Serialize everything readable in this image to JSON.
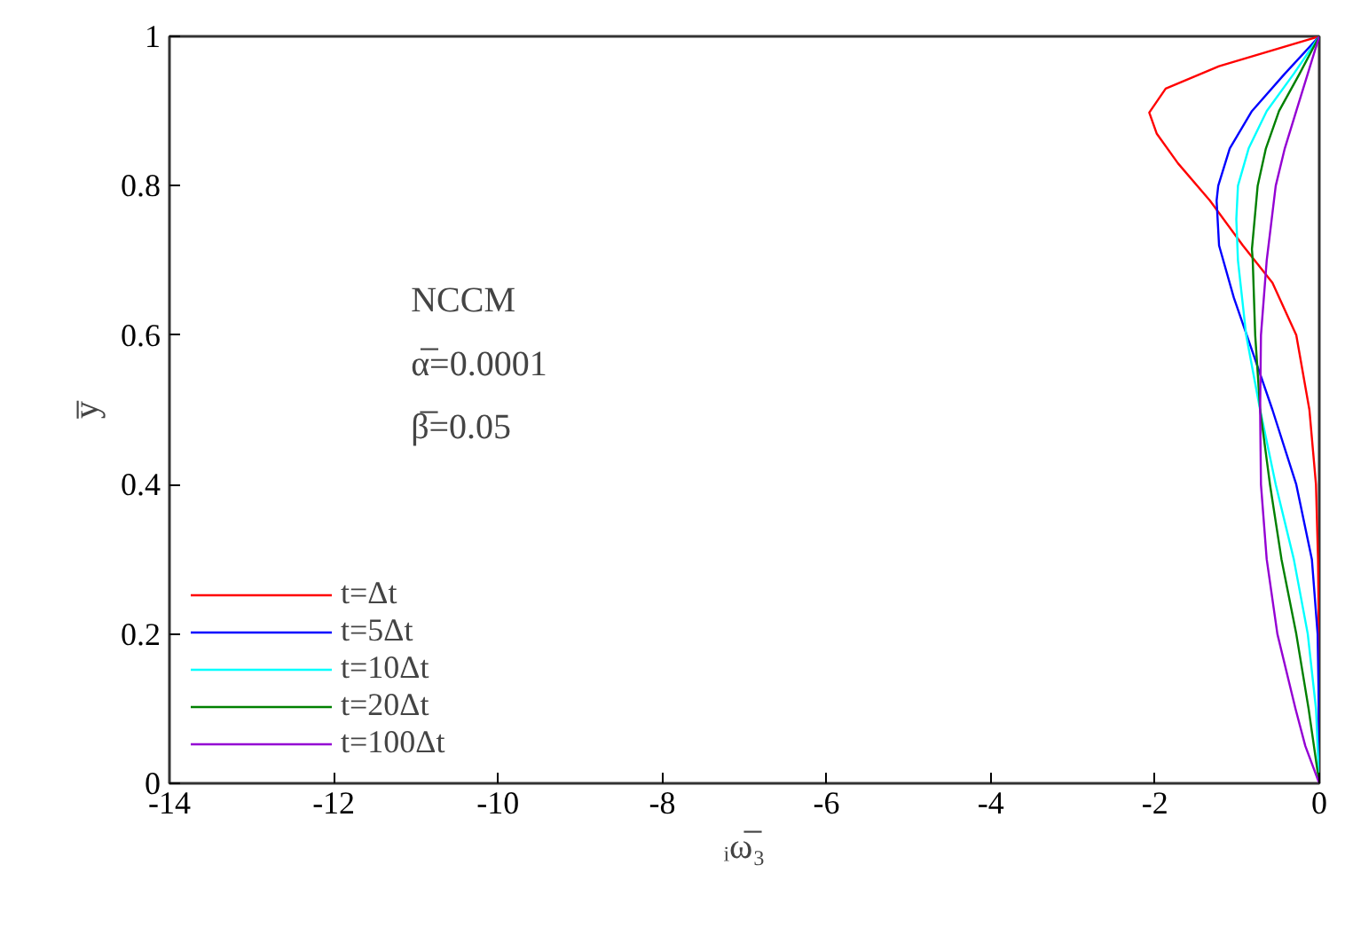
{
  "chart_data": {
    "type": "line",
    "xlabel": "ᵢω̅₃",
    "ylabel": "y̅",
    "annotations": [
      "NCCM",
      "α̅=0.0001",
      "β̅=0.05"
    ],
    "xlim": [
      -14,
      0
    ],
    "ylim": [
      0,
      1
    ],
    "xticks": [
      -14,
      -12,
      -10,
      -8,
      -6,
      -4,
      -2,
      0
    ],
    "yticks": [
      0,
      {
        "value": 0.2,
        "label": "0.2"
      },
      {
        "value": 0.4,
        "label": "0.4"
      },
      {
        "value": 0.6,
        "label": "0.6"
      },
      {
        "value": 0.8,
        "label": "0.8"
      },
      1
    ],
    "grid": false,
    "legend": "bottom left",
    "line_style": "solid",
    "series": [
      {
        "name": "t=Δt",
        "color": "#ff0000",
        "x": [
          0,
          -0.005,
          -0.015,
          -0.04,
          -0.12,
          -0.28,
          -0.57,
          -0.93,
          -1.33,
          -1.72,
          -1.98,
          -2.07,
          -1.87,
          -1.22,
          0
        ],
        "values": [
          0,
          0.2,
          0.3,
          0.4,
          0.5,
          0.6,
          0.67,
          0.72,
          0.78,
          0.83,
          0.87,
          0.898,
          0.93,
          0.96,
          1
        ]
      },
      {
        "name": "t=5Δt",
        "color": "#0000ff",
        "x": [
          0,
          -0.005,
          -0.02,
          -0.09,
          -0.28,
          -0.57,
          -0.82,
          -1.04,
          -1.22,
          -1.25,
          -1.23,
          -1.09,
          -0.82,
          -0.42,
          0
        ],
        "values": [
          0,
          0.1,
          0.2,
          0.3,
          0.4,
          0.5,
          0.58,
          0.65,
          0.72,
          0.78,
          0.8,
          0.85,
          0.9,
          0.95,
          1
        ]
      },
      {
        "name": "t=10Δt",
        "color": "#00ffff",
        "x": [
          0,
          -0.04,
          -0.14,
          -0.31,
          -0.53,
          -0.72,
          -0.89,
          -0.99,
          -1.01,
          -0.99,
          -0.86,
          -0.64,
          -0.31,
          0
        ],
        "values": [
          0,
          0.1,
          0.2,
          0.3,
          0.4,
          0.5,
          0.6,
          0.7,
          0.755,
          0.8,
          0.85,
          0.9,
          0.95,
          1
        ]
      },
      {
        "name": "t=20Δt",
        "color": "#008000",
        "x": [
          0,
          -0.13,
          -0.28,
          -0.46,
          -0.6,
          -0.72,
          -0.78,
          -0.81,
          -0.82,
          -0.75,
          -0.65,
          -0.49,
          -0.24,
          0
        ],
        "values": [
          0,
          0.1,
          0.2,
          0.3,
          0.4,
          0.5,
          0.6,
          0.7,
          0.715,
          0.8,
          0.85,
          0.9,
          0.95,
          1
        ]
      },
      {
        "name": "t=100Δt",
        "color": "#9400d3",
        "x": [
          0,
          -0.17,
          -0.29,
          -0.51,
          -0.64,
          -0.71,
          -0.72,
          -0.71,
          -0.64,
          -0.53,
          -0.42,
          -0.28,
          -0.14,
          0
        ],
        "values": [
          0,
          0.05,
          0.1,
          0.2,
          0.3,
          0.4,
          0.5,
          0.6,
          0.7,
          0.8,
          0.85,
          0.9,
          0.95,
          1
        ]
      }
    ]
  }
}
